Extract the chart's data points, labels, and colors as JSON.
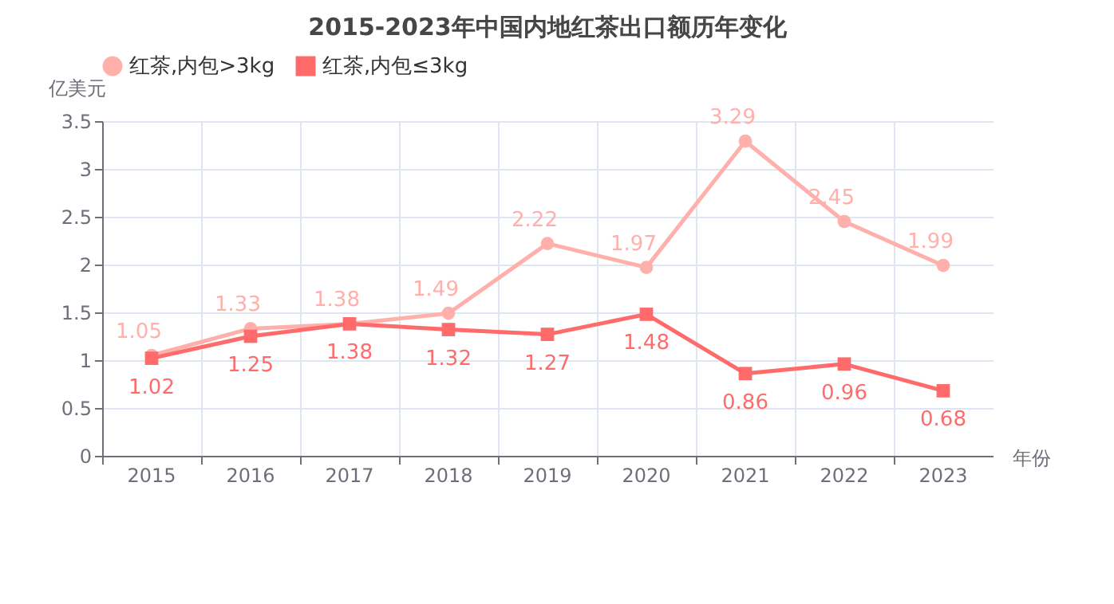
{
  "chart_data": {
    "type": "line",
    "title": "2015-2023年中国内地红茶出口额历年变化",
    "xlabel": "年份",
    "ylabel": "亿美元",
    "categories": [
      "2015",
      "2016",
      "2017",
      "2018",
      "2019",
      "2020",
      "2021",
      "2022",
      "2023"
    ],
    "series": [
      {
        "name": "红茶,内包>3kg",
        "color": "#ffb0ab",
        "marker": "circle",
        "values": [
          1.05,
          1.33,
          1.38,
          1.49,
          2.22,
          1.97,
          3.29,
          2.45,
          1.99
        ]
      },
      {
        "name": "红茶,内包≤3kg",
        "color": "#ff6b6b",
        "marker": "square",
        "values": [
          1.02,
          1.25,
          1.38,
          1.32,
          1.27,
          1.48,
          0.86,
          0.96,
          0.68
        ]
      }
    ],
    "ylim": [
      0,
      3.5
    ],
    "yticks": [
      0,
      0.5,
      1,
      1.5,
      2,
      2.5,
      3,
      3.5
    ],
    "grid": true,
    "legend": "top",
    "data_labels": true,
    "line_style": "solid"
  }
}
